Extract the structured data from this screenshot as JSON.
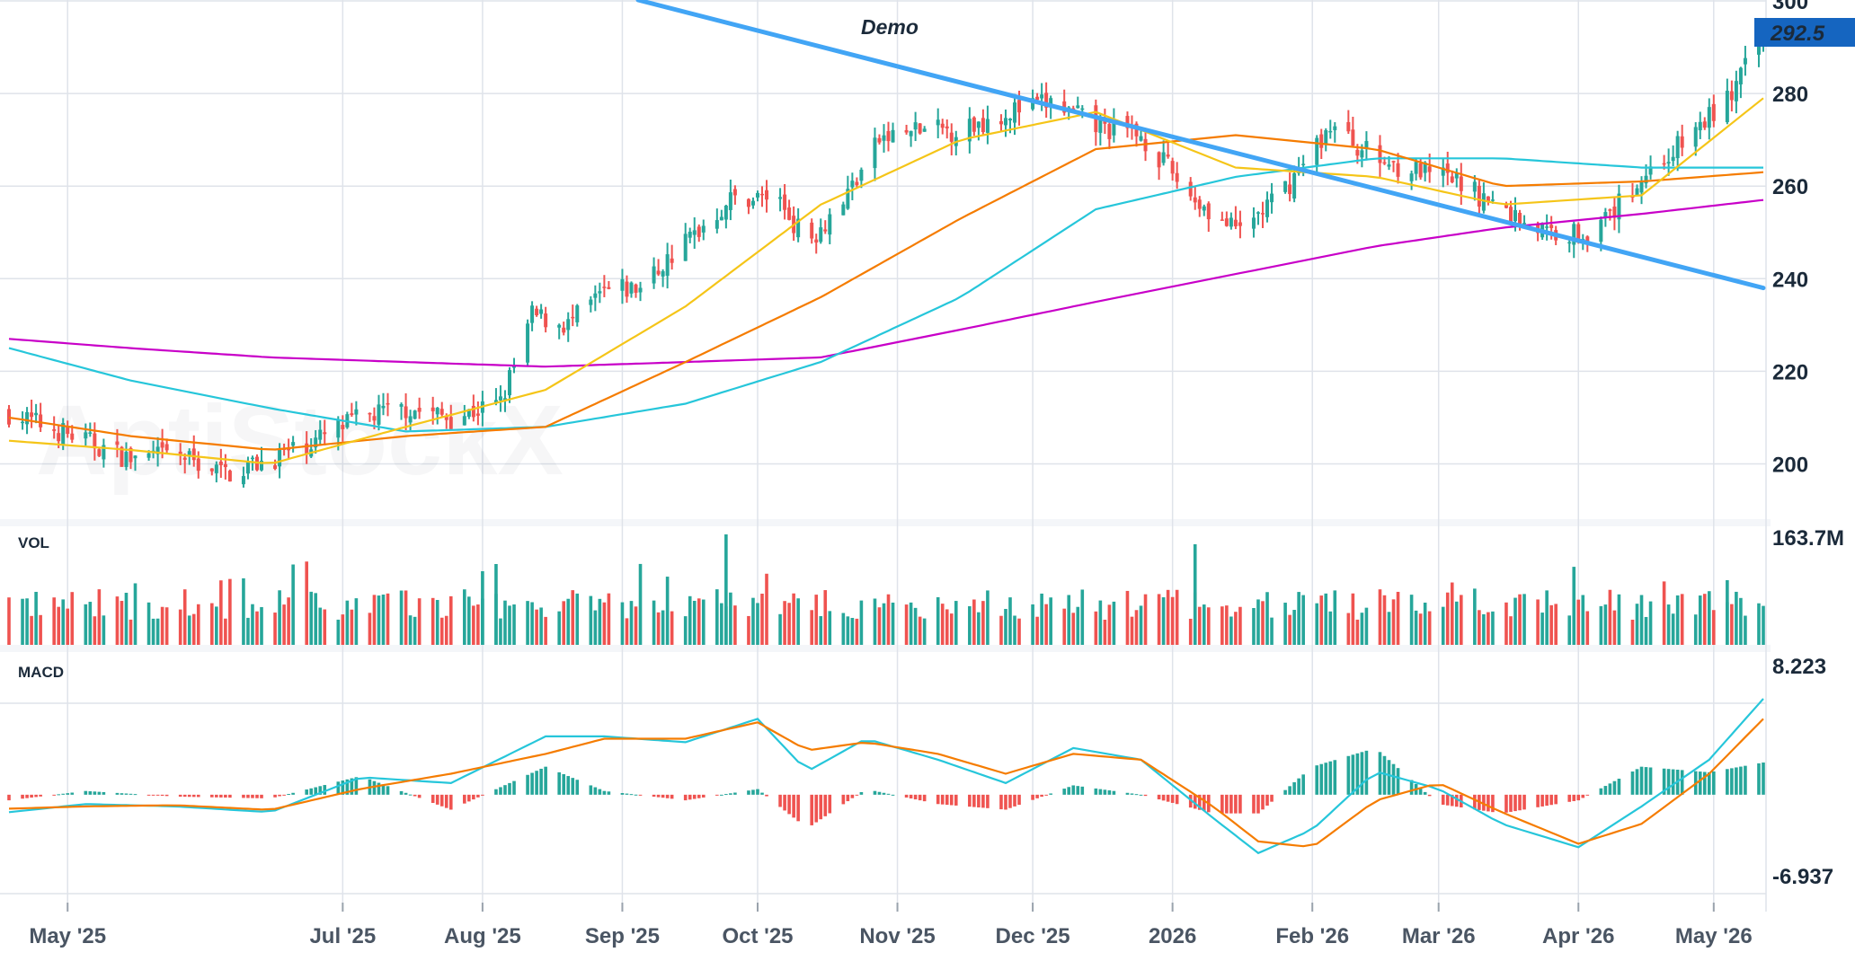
{
  "chart_data": {
    "type": "candlestick",
    "title": "",
    "watermark": "AptiStockX",
    "colors": {
      "up": "#26a69a",
      "down": "#ef5350",
      "ma_fast": "#f5c518",
      "ma_mid": "#f57c00",
      "ma_slow": "#26c6da",
      "ma_long": "#c800c8",
      "trendline": "#42a5f5",
      "macd": "#26c6da",
      "signal": "#f57c00",
      "last_price_bg": "#1565c0",
      "grid": "#dfe3ea"
    },
    "price_axis": {
      "min": 190,
      "max": 300,
      "ticks": [
        "200",
        "220",
        "240",
        "260",
        "280",
        "300"
      ]
    },
    "last_price": "292.5",
    "volume_pane": {
      "label": "VOL",
      "max_label": "163.7M"
    },
    "macd_pane": {
      "label": "MACD",
      "max_label": "8.223",
      "min_label": "-6.937",
      "min": -6.937,
      "max": 8.223
    },
    "annotation": {
      "text": "Demo",
      "trendline": [
        [
          "2025-04-18",
          329
        ],
        [
          "2026-05-12",
          238
        ]
      ]
    },
    "x_axis": {
      "start": "2025-04-18",
      "end": "2026-05-12",
      "ticks": [
        {
          "label": "May '25",
          "date": "2025-05-01"
        },
        {
          "label": "Jul '25",
          "date": "2025-07-01"
        },
        {
          "label": "Aug '25",
          "date": "2025-08-01"
        },
        {
          "label": "Sep '25",
          "date": "2025-09-01"
        },
        {
          "label": "Oct '25",
          "date": "2025-10-01"
        },
        {
          "label": "Nov '25",
          "date": "2025-11-01"
        },
        {
          "label": "Dec '25",
          "date": "2025-12-01"
        },
        {
          "label": "2026",
          "date": "2026-01-01"
        },
        {
          "label": "Feb '26",
          "date": "2026-02-01"
        },
        {
          "label": "Mar '26",
          "date": "2026-03-01"
        },
        {
          "label": "Apr '26",
          "date": "2026-04-01"
        },
        {
          "label": "May '26",
          "date": "2026-05-01"
        }
      ]
    },
    "close_series": {
      "dates": [
        "2025-04-18",
        "2025-05-05",
        "2025-05-15",
        "2025-05-25",
        "2025-06-05",
        "2025-06-15",
        "2025-06-25",
        "2025-07-05",
        "2025-07-15",
        "2025-07-25",
        "2025-08-05",
        "2025-08-12",
        "2025-08-20",
        "2025-08-28",
        "2025-09-05",
        "2025-09-15",
        "2025-09-25",
        "2025-10-05",
        "2025-10-12",
        "2025-10-20",
        "2025-10-28",
        "2025-11-05",
        "2025-11-15",
        "2025-11-25",
        "2025-12-05",
        "2025-12-15",
        "2025-12-25",
        "2026-01-05",
        "2026-01-15",
        "2026-01-25",
        "2026-02-05",
        "2026-02-15",
        "2026-02-25",
        "2026-03-05",
        "2026-03-15",
        "2026-03-25",
        "2026-04-05",
        "2026-04-15",
        "2026-04-25",
        "2026-05-05",
        "2026-05-12"
      ],
      "values": [
        211,
        205,
        201,
        202,
        198,
        201,
        205,
        210,
        212,
        210,
        213,
        232,
        230,
        237,
        238,
        248,
        257,
        258,
        248,
        257,
        270,
        272,
        272,
        276,
        278,
        273,
        271,
        258,
        250,
        258,
        273,
        266,
        263,
        261,
        255,
        250,
        250,
        262,
        270,
        280,
        292.5
      ]
    },
    "moving_averages": {
      "dates": [
        "2025-04-18",
        "2025-05-15",
        "2025-06-15",
        "2025-07-15",
        "2025-08-15",
        "2025-09-15",
        "2025-10-15",
        "2025-11-15",
        "2025-12-15",
        "2026-01-15",
        "2026-02-15",
        "2026-03-15",
        "2026-04-15",
        "2026-05-12"
      ],
      "ma_fast": [
        205,
        203,
        200,
        208,
        216,
        234,
        256,
        270,
        276,
        264,
        262,
        256,
        258,
        279
      ],
      "ma_mid": [
        210,
        206,
        203,
        206,
        208,
        222,
        236,
        253,
        268,
        271,
        268,
        260,
        261,
        263
      ],
      "ma_slow": [
        225,
        218,
        212,
        207,
        208,
        213,
        222,
        236,
        255,
        262,
        266,
        266,
        264,
        264
      ],
      "ma_long": [
        227,
        225,
        223,
        222,
        221,
        222,
        223,
        229,
        235,
        241,
        247,
        251,
        254,
        257
      ]
    },
    "macd_series": {
      "dates": [
        "2025-04-18",
        "2025-05-05",
        "2025-05-25",
        "2025-06-15",
        "2025-07-05",
        "2025-07-25",
        "2025-08-15",
        "2025-08-28",
        "2025-09-15",
        "2025-10-01",
        "2025-10-12",
        "2025-10-25",
        "2025-11-10",
        "2025-11-25",
        "2025-12-10",
        "2025-12-25",
        "2026-01-10",
        "2026-01-20",
        "2026-02-01",
        "2026-02-15",
        "2026-03-01",
        "2026-03-15",
        "2026-04-01",
        "2026-04-15",
        "2026-04-30",
        "2026-05-12"
      ],
      "macd": [
        -1.5,
        -0.8,
        -1.0,
        -1.5,
        1.5,
        1.0,
        5.0,
        5.0,
        4.5,
        6.5,
        2.0,
        4.8,
        3.0,
        1.0,
        4.0,
        3.0,
        -2.0,
        -5.0,
        -3.0,
        2.0,
        0.5,
        -2.5,
        -4.5,
        -1.0,
        3.0,
        8.223
      ],
      "signal": [
        -1.2,
        -1.0,
        -0.9,
        -1.3,
        0.5,
        1.8,
        3.5,
        4.8,
        4.8,
        6.2,
        3.8,
        4.5,
        3.5,
        1.8,
        3.5,
        3.0,
        -1.0,
        -4.0,
        -4.5,
        -0.5,
        1.0,
        -1.5,
        -4.2,
        -2.5,
        1.8,
        6.5
      ]
    }
  }
}
